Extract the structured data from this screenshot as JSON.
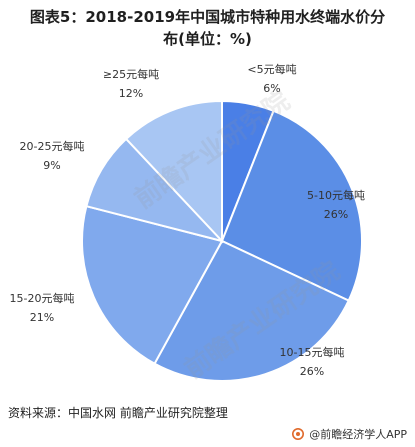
{
  "title": {
    "line1": "图表5：2018-2019年中国城市特种用水终端水价分",
    "line2": "布(单位：%)"
  },
  "chart_data": {
    "type": "pie",
    "title": "图表5：2018-2019年中国城市特种用水终端水价分布(单位：%)",
    "slices": [
      {
        "label": "<5元每吨",
        "value": 6,
        "value_label": "6%",
        "color": "#4a7fe6"
      },
      {
        "label": "5-10元每吨",
        "value": 26,
        "value_label": "26%",
        "color": "#5b8ee6"
      },
      {
        "label": "10-15元每吨",
        "value": 26,
        "value_label": "26%",
        "color": "#6e9ce9"
      },
      {
        "label": "15-20元每吨",
        "value": 21,
        "value_label": "21%",
        "color": "#80a9ed"
      },
      {
        "label": "20-25元每吨",
        "value": 9,
        "value_label": "9%",
        "color": "#95b8f0"
      },
      {
        "label": "≥25元每吨",
        "value": 12,
        "value_label": "12%",
        "color": "#a8c6f3"
      }
    ],
    "start": "top",
    "direction": "clockwise",
    "legend": "none"
  },
  "source": "资料来源：中国水网 前瞻产业研究院整理",
  "brand": "@前瞻经济学人APP",
  "watermark": "前瞻产业研究院"
}
